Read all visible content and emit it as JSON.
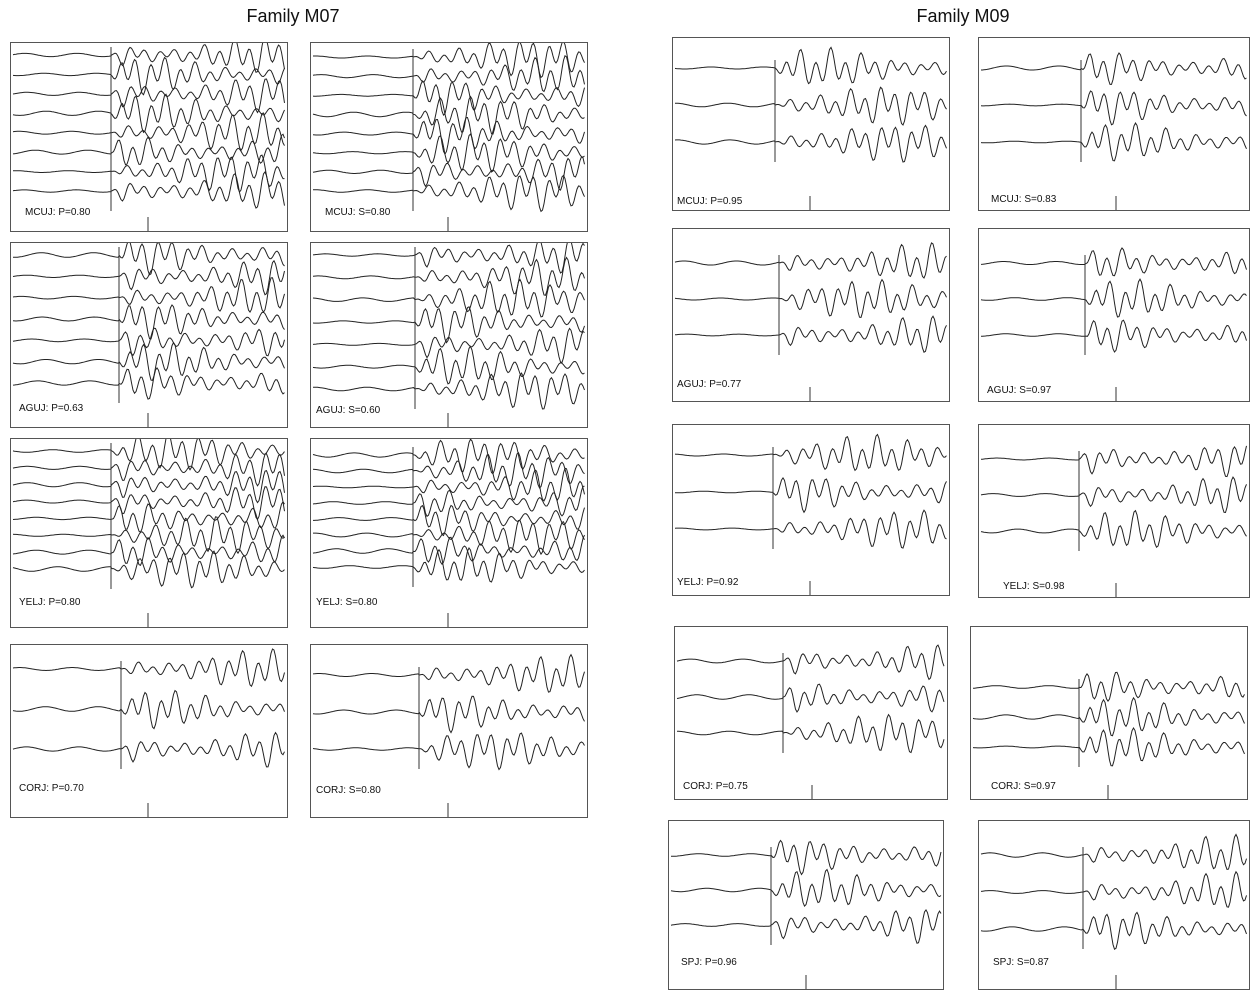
{
  "families": [
    {
      "title": "Family M07",
      "panels": [
        {
          "label": "MCUJ: P=0.80",
          "traces": 8
        },
        {
          "label": "MCUJ: S=0.80",
          "traces": 8
        },
        {
          "label": "AGUJ: P=0.63",
          "traces": 7
        },
        {
          "label": "AGUJ: S=0.60",
          "traces": 7
        },
        {
          "label": "YELJ: P=0.80",
          "traces": 8
        },
        {
          "label": "YELJ: S=0.80",
          "traces": 8
        },
        {
          "label": "CORJ: P=0.70",
          "traces": 3
        },
        {
          "label": "CORJ: S=0.80",
          "traces": 3
        }
      ]
    },
    {
      "title": "Family M09",
      "panels": [
        {
          "label": "MCUJ: P=0.95",
          "traces": 3
        },
        {
          "label": "MCUJ: S=0.83",
          "traces": 3
        },
        {
          "label": "AGUJ: P=0.77",
          "traces": 3
        },
        {
          "label": "AGUJ: S=0.97",
          "traces": 3
        },
        {
          "label": "YELJ: P=0.92",
          "traces": 3
        },
        {
          "label": "YELJ: S=0.98",
          "traces": 3
        },
        {
          "label": "CORJ: P=0.75",
          "traces": 3
        },
        {
          "label": "CORJ: S=0.97",
          "traces": 3
        },
        {
          "label": "SPJ: P=0.96",
          "traces": 3
        },
        {
          "label": "SPJ: S=0.87",
          "traces": 3
        }
      ]
    }
  ]
}
